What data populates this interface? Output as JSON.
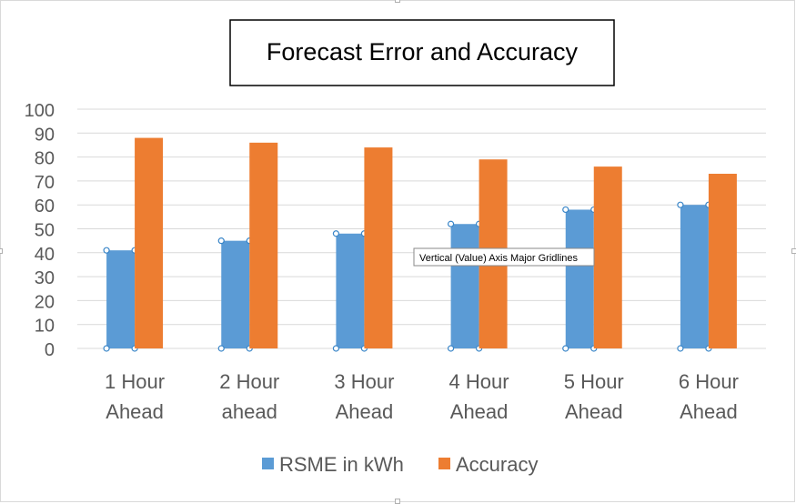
{
  "chart_data": {
    "type": "bar",
    "title": "Forecast Error and Accuracy",
    "categories": [
      [
        "1 Hour",
        "Ahead"
      ],
      [
        "2 Hour",
        "ahead"
      ],
      [
        "3 Hour",
        "Ahead"
      ],
      [
        "4 Hour",
        "Ahead"
      ],
      [
        "5 Hour",
        "Ahead"
      ],
      [
        "6 Hour",
        "Ahead"
      ]
    ],
    "series": [
      {
        "name": "RSME in kWh",
        "values": [
          41,
          45,
          48,
          52,
          58,
          60
        ],
        "color": "#5b9bd5",
        "selected": true
      },
      {
        "name": "Accuracy",
        "values": [
          88,
          86,
          84,
          79,
          76,
          73
        ],
        "color": "#ed7d31",
        "selected": false
      }
    ],
    "ylim": [
      0,
      100
    ],
    "yticks": [
      0,
      10,
      20,
      30,
      40,
      50,
      60,
      70,
      80,
      90,
      100
    ],
    "grid": true,
    "legend_position": "bottom"
  },
  "tooltip": {
    "text": "Vertical (Value) Axis Major Gridlines"
  }
}
